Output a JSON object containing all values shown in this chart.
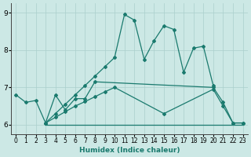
{
  "xlabel": "Humidex (Indice chaleur)",
  "bg_color": "#cce8e5",
  "line_color": "#1a7a6e",
  "grid_color": "#aacfcc",
  "ylim": [
    5.75,
    9.25
  ],
  "xlim": [
    -0.5,
    23.5
  ],
  "yticks": [
    6,
    7,
    8,
    9
  ],
  "xticks": [
    0,
    1,
    2,
    3,
    4,
    5,
    6,
    7,
    8,
    9,
    10,
    11,
    12,
    13,
    14,
    15,
    16,
    17,
    18,
    19,
    20,
    21,
    22,
    23
  ],
  "series1_x": [
    0,
    1,
    2,
    3,
    4,
    5,
    6,
    7,
    8,
    20,
    21,
    22,
    23
  ],
  "series1_y": [
    6.8,
    6.6,
    6.65,
    6.05,
    6.8,
    6.4,
    6.7,
    6.7,
    7.15,
    7.0,
    6.6,
    6.05,
    6.05
  ],
  "series2_x": [
    3,
    4,
    5,
    6,
    7,
    8,
    9,
    10,
    11,
    12,
    13,
    14,
    15,
    16,
    17,
    18,
    19,
    20
  ],
  "series2_y": [
    6.05,
    6.3,
    6.55,
    6.8,
    7.05,
    7.3,
    7.55,
    7.8,
    8.95,
    8.8,
    7.75,
    8.25,
    8.65,
    8.55,
    7.4,
    8.05,
    8.1,
    7.05
  ],
  "series3_x": [
    3,
    4,
    5,
    6,
    7,
    8,
    9,
    10,
    15,
    20,
    21,
    22,
    23
  ],
  "series3_y": [
    6.05,
    6.2,
    6.35,
    6.5,
    6.62,
    6.75,
    6.88,
    7.0,
    6.3,
    6.95,
    6.5,
    6.05,
    6.05
  ],
  "line4_x": [
    3,
    23
  ],
  "line4_y": [
    6.0,
    6.0
  ]
}
